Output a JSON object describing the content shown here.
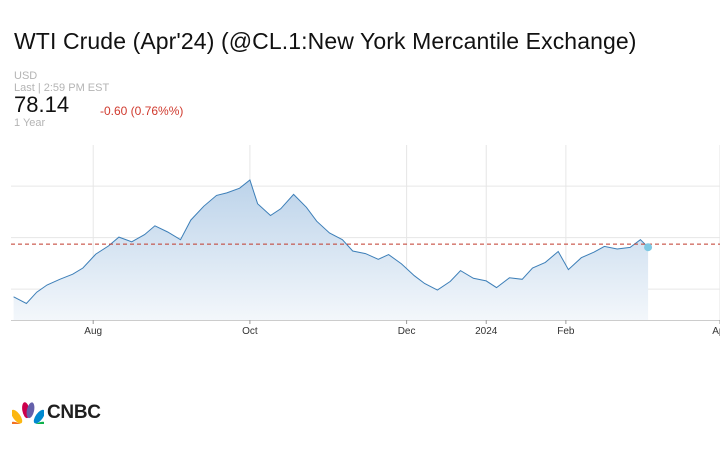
{
  "header": {
    "title": "WTI Crude (Apr'24) (@CL.1:New York Mercantile Exchange)",
    "currency": "USD",
    "last_updated": "Last | 2:59 PM EST",
    "price": "78.14",
    "change": "-0.60 (0.76%%)",
    "period": "1 Year"
  },
  "brand": {
    "name": "CNBC"
  },
  "colors": {
    "line": "#3d7fb8",
    "fill_top": "#bcd3ea",
    "fill_bottom": "#f3f7fb",
    "reference_line": "#c0392b",
    "last_point": "#7ec8e3",
    "grid": "#e6e6e6",
    "change_negative": "#d03a2e"
  },
  "chart_data": {
    "type": "area",
    "x_tick_labels": [
      "Aug",
      "Oct",
      "Dec",
      "2024",
      "Feb",
      "Apr"
    ],
    "x_ticks": [
      "2023-08-01",
      "2023-10-01",
      "2023-12-01",
      "2024-01-01",
      "2024-02-01",
      "2024-04-01"
    ],
    "xlim": [
      "2023-06-30",
      "2024-04-01"
    ],
    "ylim": [
      64,
      98
    ],
    "y_tick_labels_shown": false,
    "grid": true,
    "reference_line": 78.74,
    "series": [
      {
        "x": [
          "2023-07-01",
          "2023-07-06",
          "2023-07-10",
          "2023-07-14",
          "2023-07-19",
          "2023-07-24",
          "2023-07-28",
          "2023-08-02",
          "2023-08-07",
          "2023-08-11",
          "2023-08-16",
          "2023-08-21",
          "2023-08-25",
          "2023-08-30",
          "2023-09-04",
          "2023-09-08",
          "2023-09-13",
          "2023-09-18",
          "2023-09-22",
          "2023-09-27",
          "2023-10-01",
          "2023-10-04",
          "2023-10-09",
          "2023-10-13",
          "2023-10-18",
          "2023-10-23",
          "2023-10-27",
          "2023-11-01",
          "2023-11-06",
          "2023-11-10",
          "2023-11-15",
          "2023-11-20",
          "2023-11-24",
          "2023-11-29",
          "2023-12-04",
          "2023-12-08",
          "2023-12-13",
          "2023-12-18",
          "2023-12-22",
          "2023-12-27",
          "2024-01-01",
          "2024-01-05",
          "2024-01-10",
          "2024-01-15",
          "2024-01-19",
          "2024-01-24",
          "2024-01-29",
          "2024-02-02",
          "2024-02-07",
          "2024-02-12",
          "2024-02-16",
          "2024-02-21",
          "2024-02-26",
          "2024-03-01",
          "2024-03-04"
        ],
        "y": [
          68.5,
          67.2,
          69.4,
          70.8,
          71.9,
          72.9,
          74.1,
          76.8,
          78.4,
          80.1,
          79.2,
          80.6,
          82.3,
          81.1,
          79.6,
          83.4,
          86.1,
          88.2,
          88.7,
          89.6,
          91.2,
          86.6,
          84.3,
          85.6,
          88.4,
          85.9,
          83.2,
          80.9,
          79.6,
          77.4,
          76.9,
          75.8,
          76.7,
          74.9,
          72.6,
          71.1,
          69.8,
          71.5,
          73.6,
          72.1,
          71.6,
          70.3,
          72.2,
          71.9,
          74.1,
          75.2,
          77.3,
          73.8,
          76.1,
          77.2,
          78.3,
          77.8,
          78.1,
          79.6,
          78.14
        ]
      }
    ]
  }
}
